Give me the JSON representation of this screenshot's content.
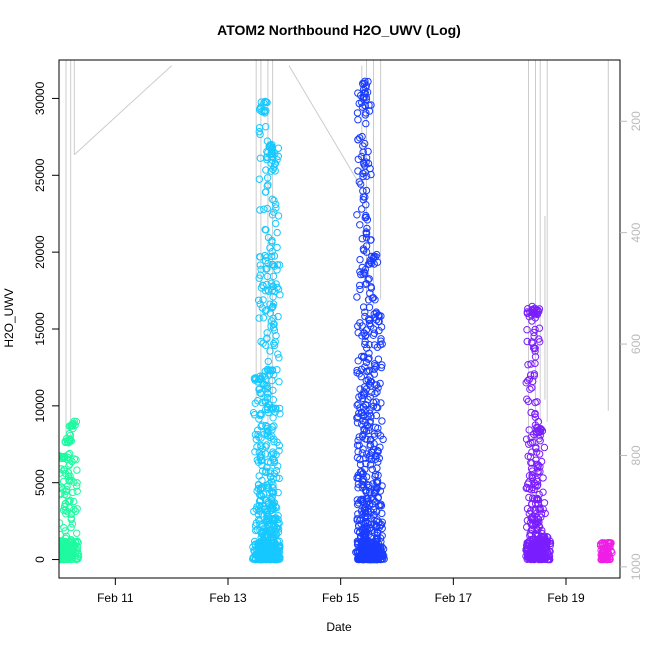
{
  "chart_data": {
    "type": "scatter",
    "title": "ATOM2 Northbound H2O_UWV (Log)",
    "xlabel": "Date",
    "ylabel": "H2O_UWV",
    "xlim": [
      "2016-02-10T00:00",
      "2016-02-19T23:00"
    ],
    "ylim": [
      -1200,
      32500
    ],
    "xticks": [
      {
        "label": "Feb 11",
        "x": "2016-02-11T00:00"
      },
      {
        "label": "Feb 13",
        "x": "2016-02-13T00:00"
      },
      {
        "label": "Feb 15",
        "x": "2016-02-15T00:00"
      },
      {
        "label": "Feb 17",
        "x": "2016-02-17T00:00"
      },
      {
        "label": "Feb 19",
        "x": "2016-02-19T00:00"
      }
    ],
    "yticks": [
      0,
      5000,
      10000,
      15000,
      20000,
      25000,
      30000
    ],
    "y2": {
      "label": "",
      "ticks": [
        200,
        400,
        600,
        800,
        1000
      ],
      "lim": [
        90,
        1020
      ],
      "inverted": true,
      "color": "#bbbbbb"
    },
    "grid": false,
    "legend": "none",
    "series": [
      {
        "color": "#1efaa0",
        "x": [
          "2016-02-10T02:00",
          "2016-02-10T04:00",
          "2016-02-10T06:00"
        ],
        "low": [
          0,
          0,
          0
        ],
        "high": [
          6800,
          7900,
          9000
        ]
      },
      {
        "color": "#16c8ff",
        "x": [
          "2016-02-13T13:00",
          "2016-02-13T15:00",
          "2016-02-13T18:00",
          "2016-02-13T20:00"
        ],
        "low": [
          0,
          0,
          0,
          0
        ],
        "high": [
          12000,
          29900,
          27200,
          26800
        ]
      },
      {
        "color": "#1a3cff",
        "x": [
          "2016-02-15T09:00",
          "2016-02-15T11:00",
          "2016-02-15T14:00",
          "2016-02-15T16:00"
        ],
        "low": [
          0,
          0,
          0,
          0
        ],
        "high": [
          30600,
          31200,
          19900,
          16100
        ]
      },
      {
        "color": "#7a1eff",
        "x": [
          "2016-02-18T09:00",
          "2016-02-18T11:00",
          "2016-02-18T13:00",
          "2016-02-18T15:00"
        ],
        "low": [
          0,
          0,
          0,
          0
        ],
        "high": [
          16400,
          16500,
          8600,
          1500
        ]
      },
      {
        "color": "#f01ee6",
        "x": [
          "2016-02-19T17:00"
        ],
        "low": [
          0
        ],
        "high": [
          1100
        ]
      }
    ],
    "pressure_lines": [
      {
        "x": [
          "2016-02-10T03:00",
          "2016-02-10T03:00"
        ],
        "p": [
          60,
          780
        ]
      },
      {
        "x": [
          "2016-02-10T05:00",
          "2016-02-10T05:00"
        ],
        "p": [
          60,
          770
        ]
      },
      {
        "x": [
          "2016-02-10T06:30",
          "2016-02-10T06:30"
        ],
        "p": [
          60,
          260
        ]
      },
      {
        "x": [
          "2016-02-10T06:30",
          "2016-02-12T00:00"
        ],
        "p": [
          260,
          100
        ]
      },
      {
        "x": [
          "2016-02-13T12:00",
          "2016-02-13T12:00"
        ],
        "p": [
          60,
          705
        ]
      },
      {
        "x": [
          "2016-02-13T14:00",
          "2016-02-13T14:00"
        ],
        "p": [
          60,
          705
        ]
      },
      {
        "x": [
          "2016-02-13T17:00",
          "2016-02-13T17:00"
        ],
        "p": [
          60,
          810
        ]
      },
      {
        "x": [
          "2016-02-13T19:00",
          "2016-02-13T19:00"
        ],
        "p": [
          60,
          720
        ]
      },
      {
        "x": [
          "2016-02-14T02:00",
          "2016-02-15T09:00"
        ],
        "p": [
          100,
          320
        ]
      },
      {
        "x": [
          "2016-02-15T09:00",
          "2016-02-15T09:00"
        ],
        "p": [
          100,
          320
        ]
      },
      {
        "x": [
          "2016-02-15T11:00",
          "2016-02-15T11:00"
        ],
        "p": [
          60,
          540
        ]
      },
      {
        "x": [
          "2016-02-15T14:00",
          "2016-02-15T14:00"
        ],
        "p": [
          60,
          530
        ]
      },
      {
        "x": [
          "2016-02-15T17:00",
          "2016-02-15T17:00"
        ],
        "p": [
          60,
          520
        ]
      },
      {
        "x": [
          "2016-02-18T08:00",
          "2016-02-18T08:00"
        ],
        "p": [
          60,
          770
        ]
      },
      {
        "x": [
          "2016-02-18T11:00",
          "2016-02-18T11:00"
        ],
        "p": [
          60,
          750
        ]
      },
      {
        "x": [
          "2016-02-18T13:00",
          "2016-02-18T13:00"
        ],
        "p": [
          60,
          740
        ]
      },
      {
        "x": [
          "2016-02-18T15:00",
          "2016-02-18T15:00"
        ],
        "p": [
          370,
          700
        ]
      },
      {
        "x": [
          "2016-02-18T16:00",
          "2016-02-18T16:00"
        ],
        "p": [
          60,
          740
        ]
      },
      {
        "x": [
          "2016-02-19T18:00",
          "2016-02-19T18:00"
        ],
        "p": [
          60,
          720
        ]
      }
    ]
  }
}
